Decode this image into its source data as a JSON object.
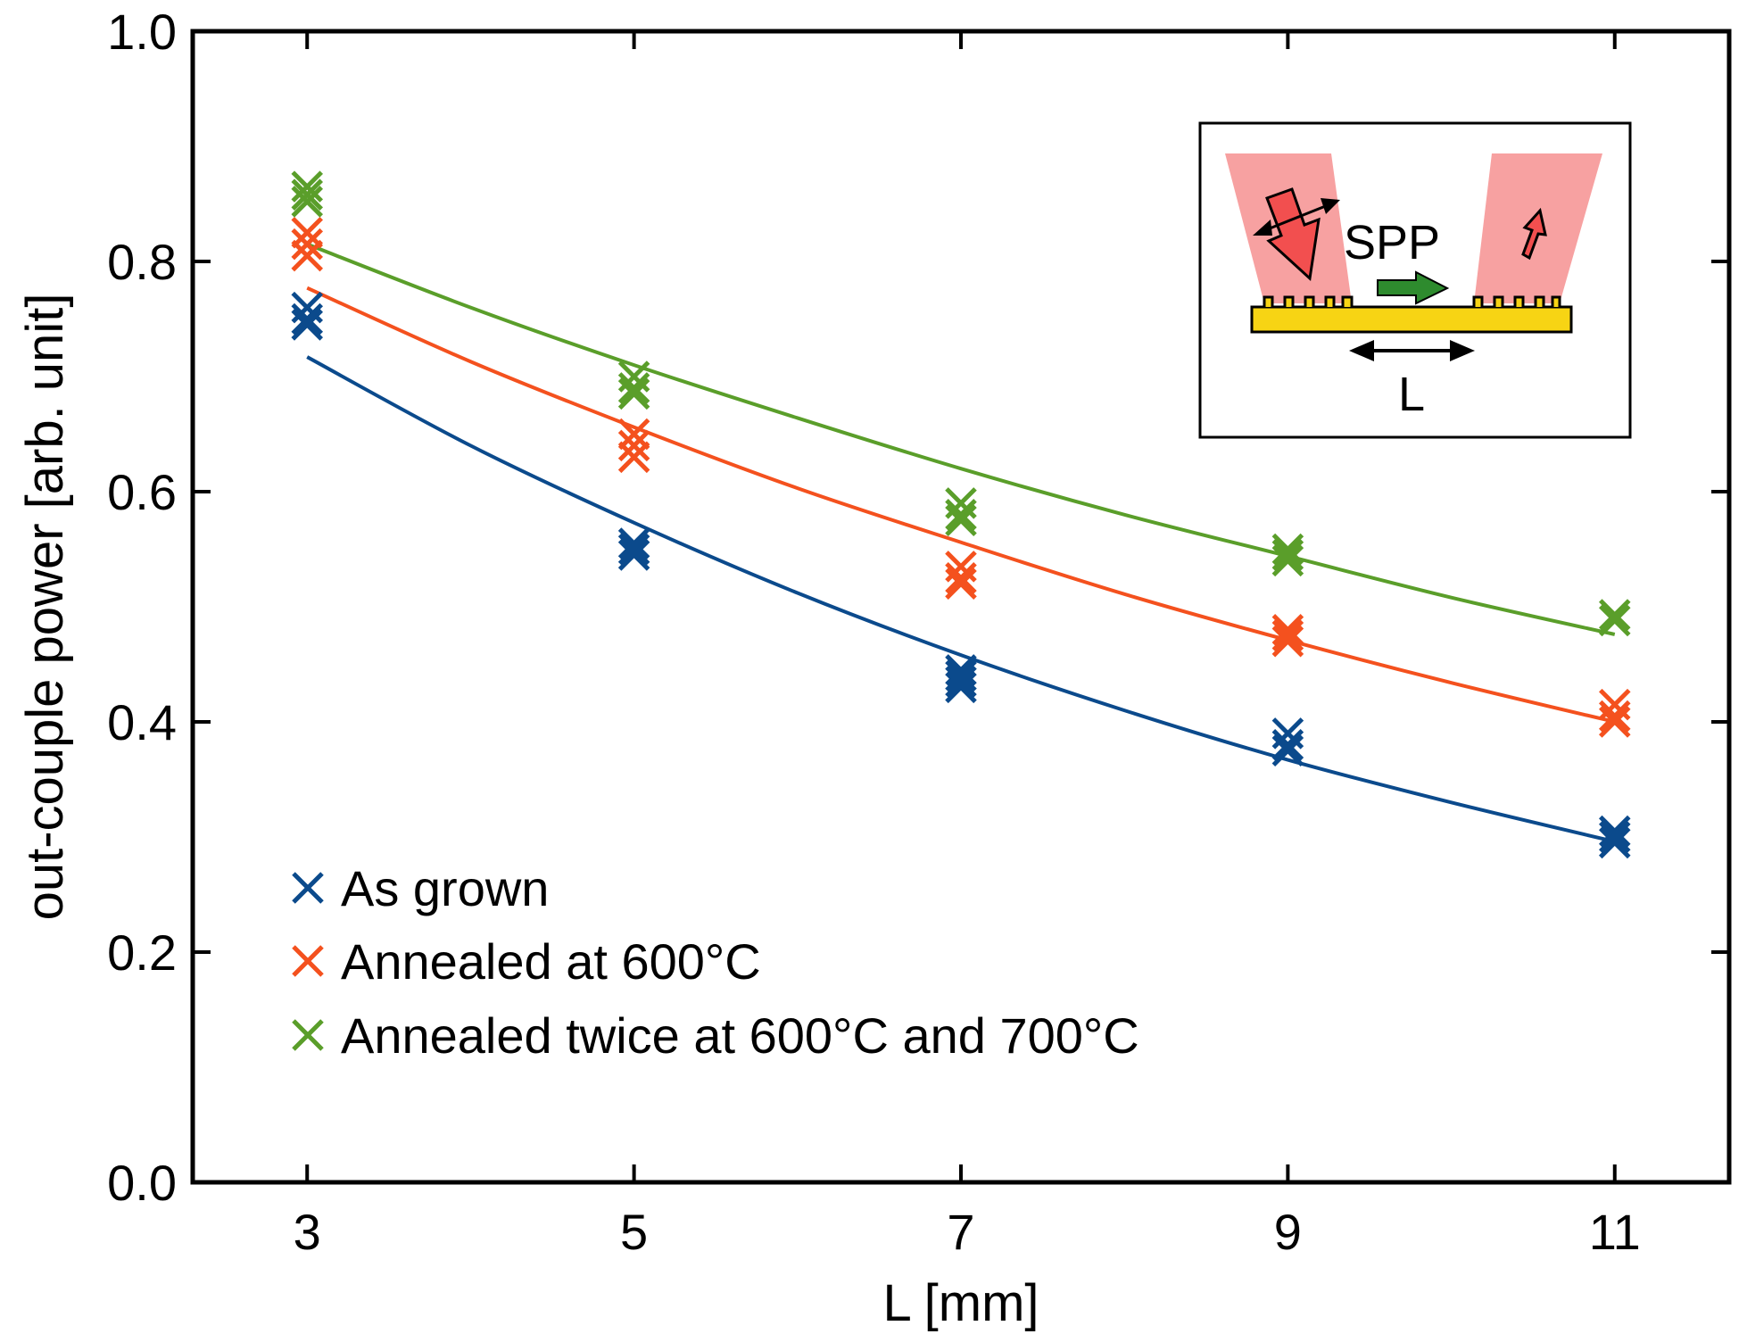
{
  "chart_data": {
    "type": "scatter",
    "title": "",
    "xlabel": "L [mm]",
    "ylabel": "out-couple power [arb. unit]",
    "xlim": [
      2.3,
      11.7
    ],
    "ylim": [
      0.0,
      1.0
    ],
    "xticks": [
      3,
      5,
      7,
      9,
      11
    ],
    "xtick_labels": [
      "3",
      "5",
      "7",
      "9",
      "11"
    ],
    "yticks": [
      0.0,
      0.2,
      0.4,
      0.6,
      0.8,
      1.0
    ],
    "ytick_labels": [
      "0.0",
      "0.2",
      "0.4",
      "0.6",
      "0.8",
      "1.0"
    ],
    "grid": false,
    "legend_position": "bottom-left",
    "series": [
      {
        "name": "As grown",
        "color": "#0b4a8c",
        "marker": "x",
        "points": [
          {
            "x": 3,
            "y": 0.76
          },
          {
            "x": 3,
            "y": 0.75
          },
          {
            "x": 3,
            "y": 0.745
          },
          {
            "x": 5,
            "y": 0.555
          },
          {
            "x": 5,
            "y": 0.55
          },
          {
            "x": 5,
            "y": 0.545
          },
          {
            "x": 7,
            "y": 0.445
          },
          {
            "x": 7,
            "y": 0.44
          },
          {
            "x": 7,
            "y": 0.435
          },
          {
            "x": 7,
            "y": 0.43
          },
          {
            "x": 9,
            "y": 0.39
          },
          {
            "x": 9,
            "y": 0.38
          },
          {
            "x": 9,
            "y": 0.375
          },
          {
            "x": 11,
            "y": 0.305
          },
          {
            "x": 11,
            "y": 0.3
          },
          {
            "x": 11,
            "y": 0.295
          }
        ],
        "fit": [
          {
            "x": 3,
            "y": 0.717
          },
          {
            "x": 4,
            "y": 0.64
          },
          {
            "x": 5,
            "y": 0.573
          },
          {
            "x": 6,
            "y": 0.512
          },
          {
            "x": 7,
            "y": 0.458
          },
          {
            "x": 8,
            "y": 0.41
          },
          {
            "x": 9,
            "y": 0.367
          },
          {
            "x": 10,
            "y": 0.33
          },
          {
            "x": 11,
            "y": 0.296
          }
        ]
      },
      {
        "name": "Annealed at 600°C",
        "color": "#f4511e",
        "marker": "x",
        "points": [
          {
            "x": 3,
            "y": 0.825
          },
          {
            "x": 3,
            "y": 0.815
          },
          {
            "x": 3,
            "y": 0.805
          },
          {
            "x": 5,
            "y": 0.65
          },
          {
            "x": 5,
            "y": 0.64
          },
          {
            "x": 5,
            "y": 0.63
          },
          {
            "x": 7,
            "y": 0.535
          },
          {
            "x": 7,
            "y": 0.525
          },
          {
            "x": 7,
            "y": 0.52
          },
          {
            "x": 9,
            "y": 0.48
          },
          {
            "x": 9,
            "y": 0.475
          },
          {
            "x": 9,
            "y": 0.47
          },
          {
            "x": 11,
            "y": 0.415
          },
          {
            "x": 11,
            "y": 0.405
          },
          {
            "x": 11,
            "y": 0.4
          }
        ],
        "fit": [
          {
            "x": 3,
            "y": 0.777
          },
          {
            "x": 4,
            "y": 0.713
          },
          {
            "x": 5,
            "y": 0.656
          },
          {
            "x": 6,
            "y": 0.603
          },
          {
            "x": 7,
            "y": 0.556
          },
          {
            "x": 8,
            "y": 0.511
          },
          {
            "x": 9,
            "y": 0.471
          },
          {
            "x": 10,
            "y": 0.434
          },
          {
            "x": 11,
            "y": 0.4
          }
        ]
      },
      {
        "name": "Annealed twice at 600°C and 700°C",
        "color": "#5a9e2a",
        "marker": "x",
        "points": [
          {
            "x": 3,
            "y": 0.865
          },
          {
            "x": 3,
            "y": 0.858
          },
          {
            "x": 3,
            "y": 0.852
          },
          {
            "x": 5,
            "y": 0.7
          },
          {
            "x": 5,
            "y": 0.69
          },
          {
            "x": 5,
            "y": 0.685
          },
          {
            "x": 7,
            "y": 0.59
          },
          {
            "x": 7,
            "y": 0.58
          },
          {
            "x": 7,
            "y": 0.575
          },
          {
            "x": 9,
            "y": 0.55
          },
          {
            "x": 9,
            "y": 0.545
          },
          {
            "x": 9,
            "y": 0.54
          },
          {
            "x": 11,
            "y": 0.493
          },
          {
            "x": 11,
            "y": 0.488
          }
        ],
        "fit": [
          {
            "x": 3,
            "y": 0.815
          },
          {
            "x": 4,
            "y": 0.76
          },
          {
            "x": 5,
            "y": 0.71
          },
          {
            "x": 6,
            "y": 0.664
          },
          {
            "x": 7,
            "y": 0.62
          },
          {
            "x": 8,
            "y": 0.58
          },
          {
            "x": 9,
            "y": 0.544
          },
          {
            "x": 10,
            "y": 0.508
          },
          {
            "x": 11,
            "y": 0.476
          }
        ]
      }
    ],
    "inset": {
      "spp_label": "SPP",
      "distance_label": "L",
      "beam_color": "#f7a1a1",
      "arrow_color": "#f24f4f",
      "spp_arrow_color": "#2e8b2e",
      "grating_color": "#f7d414"
    }
  }
}
